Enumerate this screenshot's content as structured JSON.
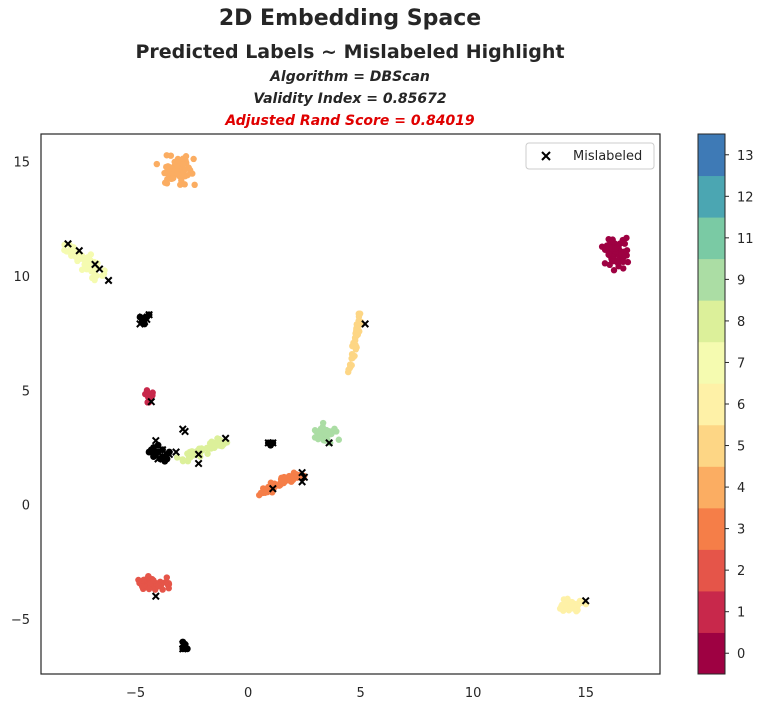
{
  "header": {
    "title": "2D Embedding Space",
    "subtitle": "Predicted Labels ~ Mislabeled Highlight",
    "algorithm": "Algorithm = DBScan",
    "validity": "Validity Index = 0.85672",
    "rand_score": "Adjusted Rand Score = 0.84019"
  },
  "chart_data": {
    "type": "scatter",
    "title": "2D Embedding Space",
    "xlim": [
      -9.2,
      18.3
    ],
    "ylim": [
      -7.4,
      16.2
    ],
    "x_ticks": [
      -5,
      0,
      5,
      10,
      15
    ],
    "y_ticks": [
      -5,
      0,
      5,
      10,
      15
    ],
    "x_tick_labels": [
      "−5",
      "0",
      "5",
      "10",
      "15"
    ],
    "y_tick_labels": [
      "−5",
      "0",
      "5",
      "10",
      "15"
    ],
    "grid": false,
    "legend": {
      "position": "top-right",
      "entries": [
        "Mislabeled"
      ]
    },
    "colorbar": {
      "labels": [
        "0",
        "1",
        "2",
        "3",
        "4",
        "5",
        "6",
        "7",
        "8",
        "9",
        "11",
        "12",
        "13"
      ],
      "colors": [
        "#9e0142",
        "#c8284b",
        "#e55549",
        "#f57e48",
        "#fbad62",
        "#fdd685",
        "#fef1a7",
        "#f5fbb0",
        "#dcf09a",
        "#abdda4",
        "#7acaa4",
        "#4ba6b2",
        "#3e7ab6"
      ]
    },
    "clusters": [
      {
        "label": "4",
        "color": "#fbad62",
        "cx": -3.2,
        "cy": 14.6,
        "sx": 0.45,
        "sy": 0.3,
        "n": 60
      },
      {
        "label": "7",
        "color": "#f5fbb0",
        "cx": -7.2,
        "cy": 10.6,
        "sx": 0.35,
        "sy": 0.22,
        "n": 60,
        "from": [
          -8.0,
          11.3
        ],
        "to": [
          -6.5,
          10.0
        ]
      },
      {
        "label": "0",
        "color": "#9e0142",
        "cx": 16.3,
        "cy": 11.1,
        "sx": 0.25,
        "sy": 0.3,
        "n": 70
      },
      {
        "label": "5",
        "color": "#fdd685",
        "cx": 4.8,
        "cy": 7.0,
        "sx": 0.12,
        "sy": 0.15,
        "n": 40,
        "from": [
          4.5,
          5.9
        ],
        "to": [
          5.0,
          8.3
        ]
      },
      {
        "label": "1",
        "color": "#c8284b",
        "cx": -4.4,
        "cy": 4.8,
        "sx": 0.1,
        "sy": 0.15,
        "n": 18
      },
      {
        "label": "9",
        "color": "#abdda4",
        "cx": 3.4,
        "cy": 3.1,
        "sx": 0.25,
        "sy": 0.2,
        "n": 40
      },
      {
        "label": "8",
        "color": "#dcf09a",
        "cx": -2.0,
        "cy": 2.5,
        "sx": 0.3,
        "sy": 0.15,
        "n": 45,
        "from": [
          -3.0,
          2.0
        ],
        "to": [
          -1.0,
          2.8
        ]
      },
      {
        "label": "3",
        "color": "#f57e48",
        "cx": 1.8,
        "cy": 0.9,
        "sx": 0.3,
        "sy": 0.15,
        "n": 50,
        "from": [
          0.5,
          0.5
        ],
        "to": [
          2.3,
          1.3
        ]
      },
      {
        "label": "2",
        "color": "#e55549",
        "cx": -4.3,
        "cy": -3.5,
        "sx": 0.35,
        "sy": 0.15,
        "n": 50
      },
      {
        "label": "6",
        "color": "#fef1a7",
        "cx": 14.4,
        "cy": -4.4,
        "sx": 0.3,
        "sy": 0.15,
        "n": 40
      }
    ],
    "noise_points": [
      [
        -4.7,
        8.0
      ],
      [
        -4.6,
        7.9
      ],
      [
        -4.8,
        8.2
      ],
      [
        -4.4,
        8.3
      ],
      [
        -4.5,
        8.2
      ],
      [
        -4.6,
        8.1
      ],
      [
        -4.2,
        2.5
      ],
      [
        -4.0,
        2.3
      ],
      [
        -3.8,
        2.1
      ],
      [
        -3.6,
        2.2
      ],
      [
        -3.9,
        2.0
      ],
      [
        -4.1,
        2.2
      ],
      [
        -3.7,
        1.9
      ],
      [
        -4.3,
        2.4
      ],
      [
        -3.5,
        2.3
      ],
      [
        -4.0,
        2.6
      ],
      [
        -3.8,
        2.4
      ],
      [
        -4.2,
        2.1
      ],
      [
        -3.6,
        2.0
      ],
      [
        -4.4,
        2.3
      ],
      [
        0.9,
        2.7
      ],
      [
        1.0,
        2.6
      ],
      [
        1.1,
        2.7
      ],
      [
        -2.9,
        -6.0
      ],
      [
        -2.8,
        -6.2
      ],
      [
        -2.7,
        -6.3
      ],
      [
        -2.9,
        -6.3
      ],
      [
        -2.8,
        -6.1
      ]
    ],
    "mislabeled": [
      [
        -8.0,
        11.4
      ],
      [
        -7.5,
        11.1
      ],
      [
        -6.8,
        10.5
      ],
      [
        -6.6,
        10.3
      ],
      [
        -6.2,
        9.8
      ],
      [
        -4.7,
        8.2
      ],
      [
        -4.6,
        8.0
      ],
      [
        -4.4,
        8.3
      ],
      [
        -4.8,
        7.9
      ],
      [
        -4.5,
        8.1
      ],
      [
        5.2,
        7.9
      ],
      [
        -4.3,
        4.5
      ],
      [
        -2.9,
        3.3
      ],
      [
        -2.8,
        3.2
      ],
      [
        -1.0,
        2.9
      ],
      [
        -4.1,
        2.8
      ],
      [
        -3.5,
        2.2
      ],
      [
        -3.2,
        2.3
      ],
      [
        -2.2,
        2.2
      ],
      [
        -2.2,
        1.8
      ],
      [
        -4.0,
        2.0
      ],
      [
        -3.8,
        2.4
      ],
      [
        -4.2,
        2.3
      ],
      [
        -3.7,
        2.1
      ],
      [
        0.9,
        2.7
      ],
      [
        1.1,
        2.7
      ],
      [
        3.6,
        2.7
      ],
      [
        2.4,
        1.4
      ],
      [
        2.5,
        1.2
      ],
      [
        2.4,
        1.0
      ],
      [
        1.1,
        0.7
      ],
      [
        -4.1,
        -4.0
      ],
      [
        15.0,
        -4.2
      ],
      [
        -2.9,
        -6.1
      ],
      [
        -2.8,
        -6.2
      ],
      [
        -2.9,
        -6.3
      ]
    ]
  }
}
